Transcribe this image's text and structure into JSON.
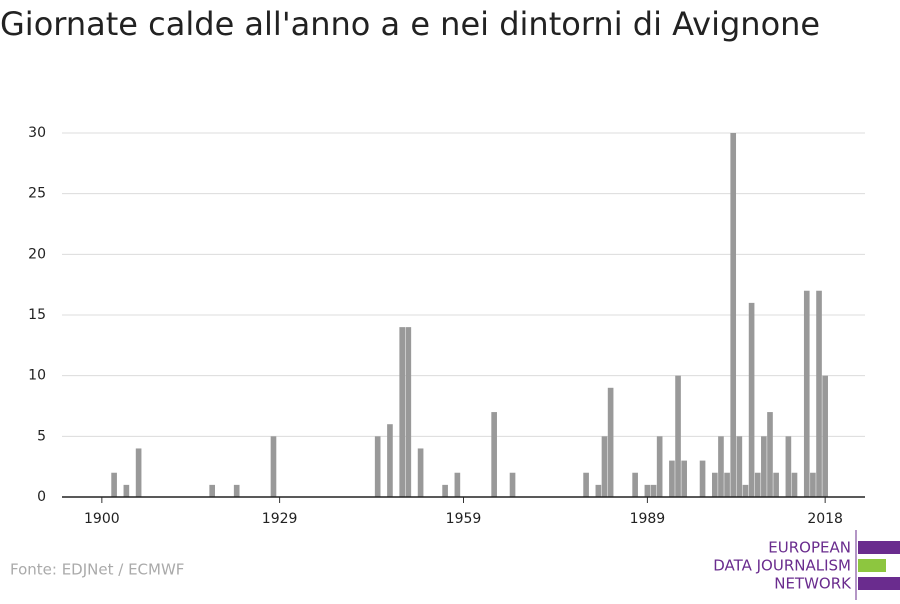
{
  "chart_data": {
    "type": "bar",
    "title": "Giornate calde all'anno a e nei dintorni di Avignone",
    "source": "Fonte: EDJNet / ECMWF",
    "logo": [
      "EUROPEAN",
      "DATA JOURNALISM",
      "NETWORK"
    ],
    "color": "#999999",
    "x": [
      1902,
      1904,
      1906,
      1918,
      1922,
      1928,
      1945,
      1947,
      1949,
      1950,
      1952,
      1956,
      1958,
      1964,
      1967,
      1979,
      1981,
      1982,
      1983,
      1987,
      1989,
      1990,
      1991,
      1993,
      1994,
      1995,
      1998,
      2000,
      2001,
      2002,
      2003,
      2004,
      2005,
      2006,
      2007,
      2008,
      2009,
      2010,
      2012,
      2013,
      2015,
      2016,
      2017,
      2018
    ],
    "values": [
      2,
      1,
      4,
      1,
      1,
      5,
      5,
      6,
      14,
      14,
      4,
      1,
      2,
      7,
      2,
      2,
      1,
      5,
      9,
      2,
      1,
      1,
      5,
      3,
      10,
      3,
      3,
      2,
      5,
      2,
      30,
      5,
      1,
      16,
      2,
      5,
      7,
      2,
      5,
      2,
      17,
      2,
      17,
      10
    ],
    "xlim": [
      1893.5,
      2024.5
    ],
    "xticks": [
      1900,
      1929,
      1959,
      1989,
      2018
    ],
    "ylim": [
      0,
      30
    ],
    "yticks": [
      0,
      5,
      10,
      15,
      20,
      25,
      30
    ],
    "grid": true
  }
}
